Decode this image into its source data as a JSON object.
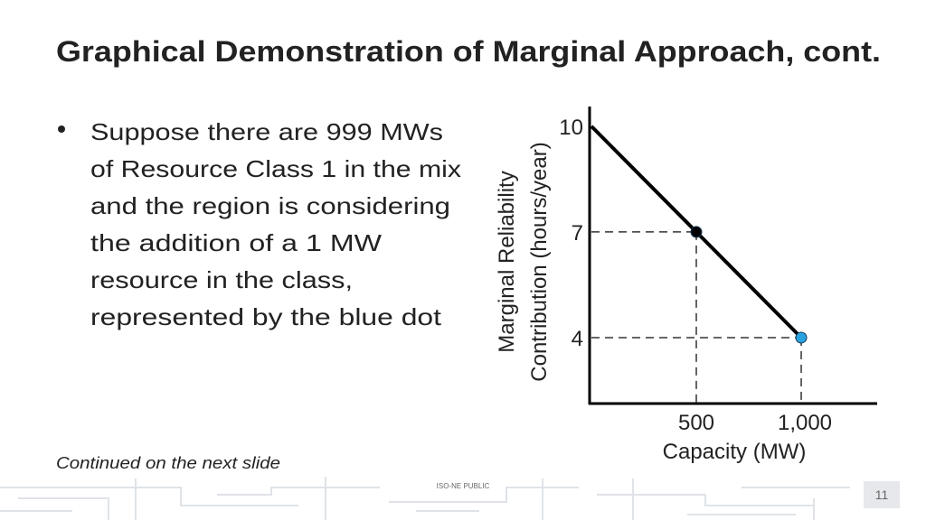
{
  "header": {
    "title": "Graphical Demonstration of Marginal Approach, cont."
  },
  "bullet": {
    "lines": [
      "Suppose there are 999 MWs",
      "of Resource Class 1 in the mix",
      "and the region is considering",
      "the addition of a 1 MW",
      "resource in the class,",
      "represented by the blue dot"
    ]
  },
  "note": "Continued on the next slide",
  "footer": {
    "label": "ISO-NE PUBLIC",
    "page": "11"
  },
  "chart_data": {
    "type": "line",
    "xlabel": "Capacity (MW)",
    "ylabel": [
      "Marginal Reliability",
      "Contribution (hours/year)"
    ],
    "x": [
      0,
      500,
      1000
    ],
    "series": [
      {
        "color": "#000000",
        "values": [
          10,
          7,
          4
        ],
        "marker_colors": [
          null,
          "#000000",
          "#29a3e0"
        ]
      }
    ],
    "xlim": [
      0,
      1362
    ],
    "ylim": [
      2.13,
      10.56
    ],
    "xticks": [
      500,
      {
        "value": 1000,
        "label": "1,000"
      }
    ],
    "yticks": [
      4,
      7,
      10
    ],
    "reference_lines": "dashed"
  }
}
